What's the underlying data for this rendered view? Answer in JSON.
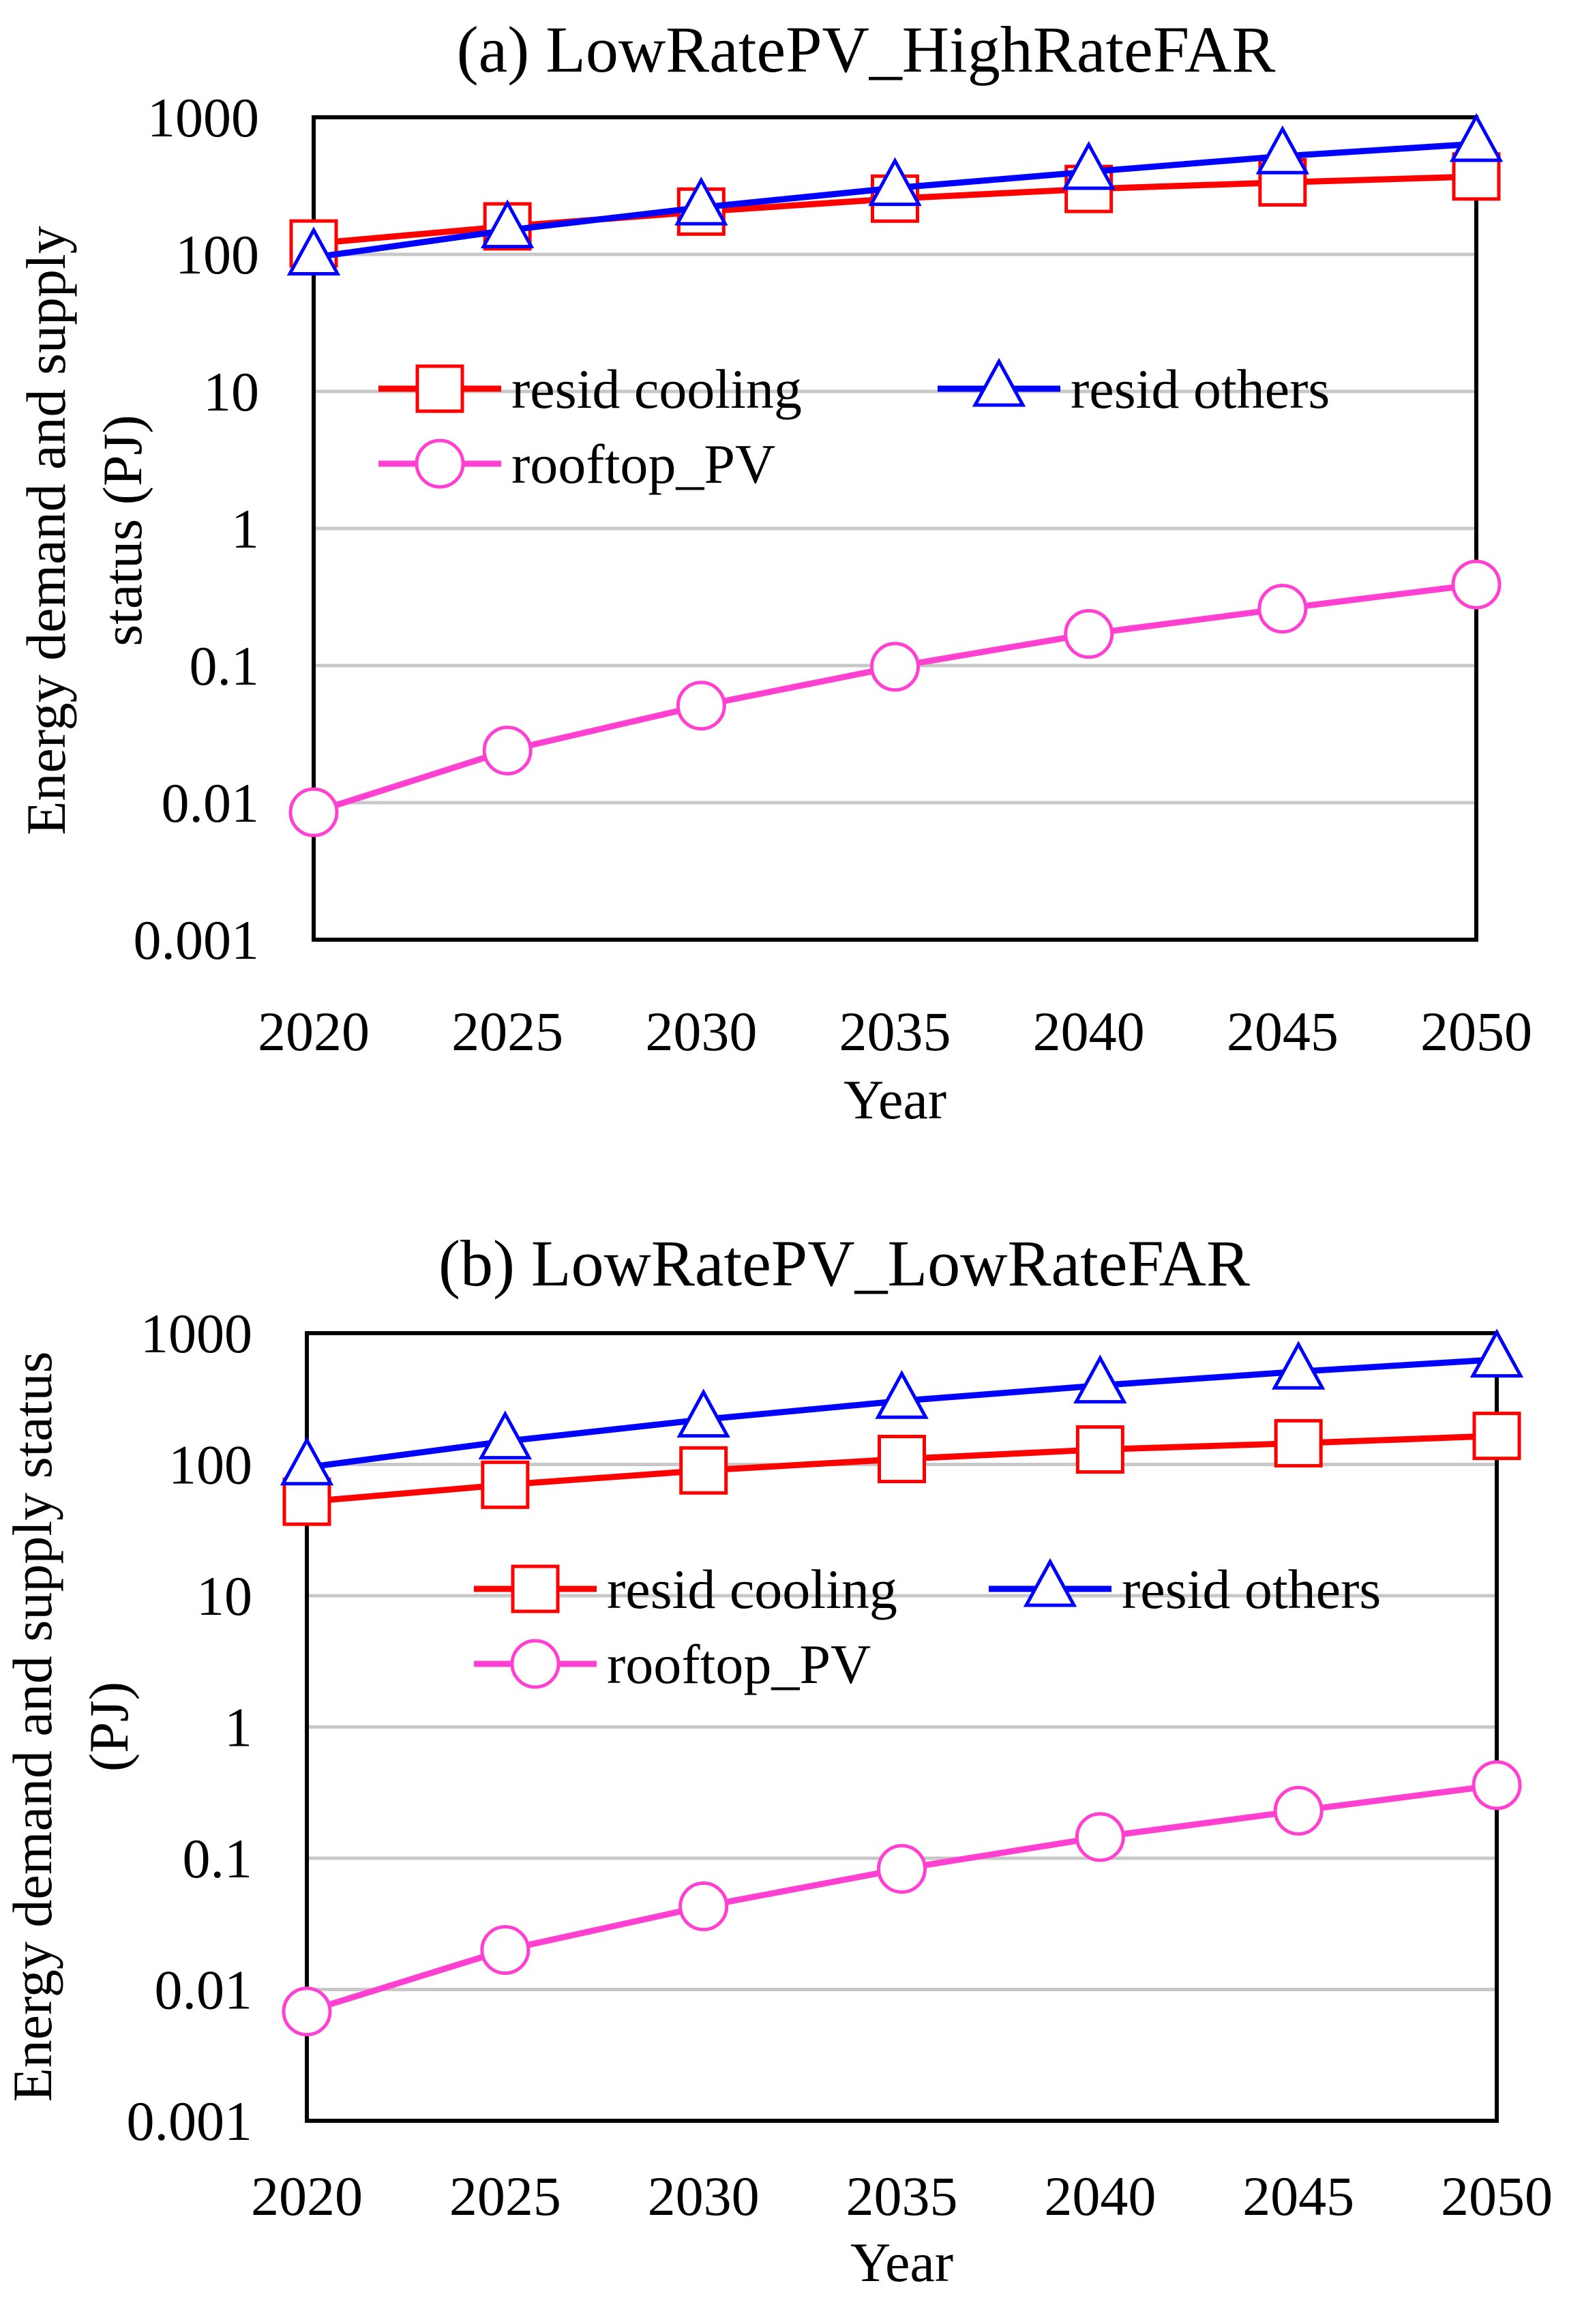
{
  "chart_data": [
    {
      "type": "line",
      "title": "(a) LowRatePV_HighRateFAR",
      "xlabel": "Year",
      "ylabel": [
        "Energy demand and supply",
        "status (PJ)"
      ],
      "y_scale": "log",
      "ylim": [
        0.001,
        1000
      ],
      "y_ticks": [
        "1000",
        "100",
        "10",
        "1",
        "0.1",
        "0.01",
        "0.001"
      ],
      "x": [
        "2020",
        "2025",
        "2030",
        "2035",
        "2040",
        "2045",
        "2050"
      ],
      "grid": "horizontal",
      "legend_position": "inside-upper",
      "series": [
        {
          "name": "resid cooling",
          "color": "#ff0000",
          "marker": "square",
          "values": [
            120,
            160,
            205,
            255,
            300,
            335,
            370
          ]
        },
        {
          "name": "resid others",
          "color": "#0000ff",
          "marker": "triangle",
          "values": [
            95,
            150,
            220,
            305,
            400,
            520,
            640
          ]
        },
        {
          "name": "rooftop_PV",
          "color": "#ff40d0",
          "marker": "circle",
          "values": [
            0.0085,
            0.024,
            0.051,
            0.098,
            0.17,
            0.26,
            0.39
          ]
        }
      ]
    },
    {
      "type": "line",
      "title": "(b) LowRatePV_LowRateFAR",
      "xlabel": "Year",
      "ylabel": [
        "Energy demand and supply status",
        "(PJ)"
      ],
      "y_scale": "log",
      "ylim": [
        0.001,
        1000
      ],
      "y_ticks": [
        "1000",
        "100",
        "10",
        "1",
        "0.1",
        "0.01",
        "0.001"
      ],
      "x": [
        "2020",
        "2025",
        "2030",
        "2035",
        "2040",
        "2045",
        "2050"
      ],
      "grid": "horizontal",
      "legend_position": "inside-upper",
      "series": [
        {
          "name": "resid cooling",
          "color": "#ff0000",
          "marker": "square",
          "values": [
            52,
            70,
            90,
            110,
            130,
            145,
            165
          ]
        },
        {
          "name": "resid others",
          "color": "#0000ff",
          "marker": "triangle",
          "values": [
            95,
            150,
            220,
            305,
            400,
            510,
            630
          ]
        },
        {
          "name": "rooftop_PV",
          "color": "#ff40d0",
          "marker": "circle",
          "values": [
            0.0068,
            0.02,
            0.043,
            0.083,
            0.145,
            0.23,
            0.36
          ]
        }
      ]
    }
  ]
}
